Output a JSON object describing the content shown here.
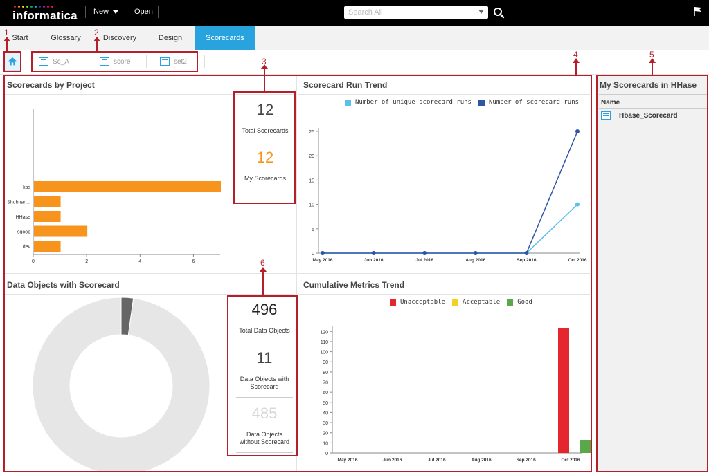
{
  "app": {
    "logo_text": "informatica",
    "logo_dot_colors": [
      "#e31e24",
      "#f7941d",
      "#ffd200",
      "#8dc63f",
      "#00a651",
      "#00aeef",
      "#2e3192",
      "#92278f",
      "#ec008c",
      "#ed1c24"
    ],
    "new_label": "New",
    "open_label": "Open",
    "search_placeholder": "Search All"
  },
  "nav": {
    "tabs": [
      {
        "label": "Start"
      },
      {
        "label": "Glossary"
      },
      {
        "label": "Discovery"
      },
      {
        "label": "Design"
      },
      {
        "label": "Scorecards",
        "active": true
      }
    ]
  },
  "doc_tabs": [
    {
      "label": "Sc_A"
    },
    {
      "label": "score"
    },
    {
      "label": "set2"
    }
  ],
  "callouts": [
    "1",
    "2",
    "3",
    "4",
    "5",
    "6"
  ],
  "panels": {
    "by_project": {
      "title": "Scorecards by Project"
    },
    "run_trend": {
      "title": "Scorecard Run Trend"
    },
    "my_scorecards": {
      "title": "My Scorecards in HHase",
      "column": "Name",
      "items": [
        "Hbase_Scorecard"
      ]
    },
    "data_objects": {
      "title": "Data Objects with Scorecard"
    },
    "cumulative": {
      "title": "Cumulative Metrics Trend"
    }
  },
  "metrics": {
    "total_scorecards": {
      "value": "12",
      "label": "Total Scorecards"
    },
    "my_scorecards": {
      "value": "12",
      "label": "My Scorecards"
    },
    "total_data_objects": {
      "value": "496",
      "label": "Total Data Objects"
    },
    "with_scorecard": {
      "value": "11",
      "label_line1": "Data Objects with",
      "label_line2": "Scorecard"
    },
    "without_scorecard": {
      "value": "485",
      "label_line1": "Data Objects",
      "label_line2": "without Scorecard"
    }
  },
  "colors": {
    "accent": "#29a3dd",
    "orange": "#f7941d",
    "callout_red": "#b3202a",
    "line_unique": "#5bc0eb",
    "line_runs": "#2f56a6",
    "unacceptable": "#e5262f",
    "acceptable": "#f2d21e",
    "good": "#5aa84a",
    "donut_light": "#e6e6e6",
    "donut_dark": "#666666"
  },
  "chart_data": [
    {
      "type": "bar",
      "orientation": "horizontal",
      "categories": [
        "kas",
        "Shubhan...",
        "HHase",
        "sqoop",
        "dev"
      ],
      "values": [
        7,
        1,
        1,
        2,
        1
      ],
      "xlim": [
        0,
        7
      ],
      "xticks": [
        "0",
        "2",
        "4",
        "6"
      ],
      "grid": false
    },
    {
      "type": "line",
      "x": [
        "May 2016",
        "Jun 2016",
        "Jul 2016",
        "Aug 2016",
        "Sep 2016",
        "Oct 2016"
      ],
      "series": [
        {
          "name": "Number of unique scorecard runs",
          "values": [
            0,
            0,
            0,
            0,
            0,
            10
          ]
        },
        {
          "name": "Number of scorecard runs",
          "values": [
            0,
            0,
            0,
            0,
            0,
            25
          ]
        }
      ],
      "ylim": [
        0,
        25
      ],
      "yticks": [
        "0",
        "5",
        "10",
        "15",
        "20",
        "25"
      ],
      "legend": "top"
    },
    {
      "type": "pie",
      "donut": true,
      "slices": [
        {
          "label": "Data Objects with Scorecard",
          "value": 11
        },
        {
          "label": "Data Objects without Scorecard",
          "value": 485
        }
      ]
    },
    {
      "type": "bar",
      "x": [
        "May 2016",
        "Jun 2016",
        "Jul 2016",
        "Aug 2016",
        "Sep 2016",
        "Oct 2016"
      ],
      "series": [
        {
          "name": "Unacceptable",
          "values": [
            0,
            0,
            0,
            0,
            0,
            123
          ]
        },
        {
          "name": "Acceptable",
          "values": [
            0,
            0,
            0,
            0,
            0,
            0
          ]
        },
        {
          "name": "Good",
          "values": [
            0,
            0,
            0,
            0,
            0,
            13
          ]
        }
      ],
      "ylim": [
        0,
        125
      ],
      "yticks": [
        "0",
        "10",
        "20",
        "30",
        "40",
        "50",
        "60",
        "70",
        "80",
        "90",
        "100",
        "110",
        "120"
      ],
      "legend": "top"
    }
  ]
}
